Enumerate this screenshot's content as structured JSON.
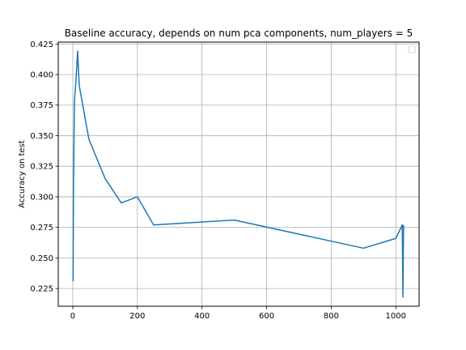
{
  "chart_data": {
    "type": "line",
    "title": "Baseline accuracy, depends on num pca components, num_players = 5",
    "xlabel": "",
    "ylabel": "Accuracy on test",
    "xlim": [
      -45,
      1072
    ],
    "ylim": [
      0.2105,
      0.4265
    ],
    "xticks": [
      0,
      200,
      400,
      600,
      800,
      1000
    ],
    "xtick_labels": [
      "0",
      "200",
      "400",
      "600",
      "800",
      "1000"
    ],
    "yticks": [
      0.225,
      0.25,
      0.275,
      0.3,
      0.325,
      0.35,
      0.375,
      0.4,
      0.425
    ],
    "ytick_labels": [
      "0.225",
      "0.250",
      "0.275",
      "0.300",
      "0.325",
      "0.350",
      "0.375",
      "0.400",
      "0.425"
    ],
    "grid": true,
    "legend": "top-right",
    "line_color": "#1f77b4",
    "series": [
      {
        "x": [
          1,
          2,
          5,
          10,
          15,
          20,
          50,
          100,
          150,
          200,
          250,
          500,
          900,
          1000,
          1020,
          1022,
          1024
        ],
        "y": [
          0.231,
          0.3,
          0.378,
          0.396,
          0.419,
          0.391,
          0.347,
          0.315,
          0.295,
          0.3,
          0.277,
          0.281,
          0.258,
          0.266,
          0.277,
          0.218,
          0.277
        ]
      }
    ]
  }
}
